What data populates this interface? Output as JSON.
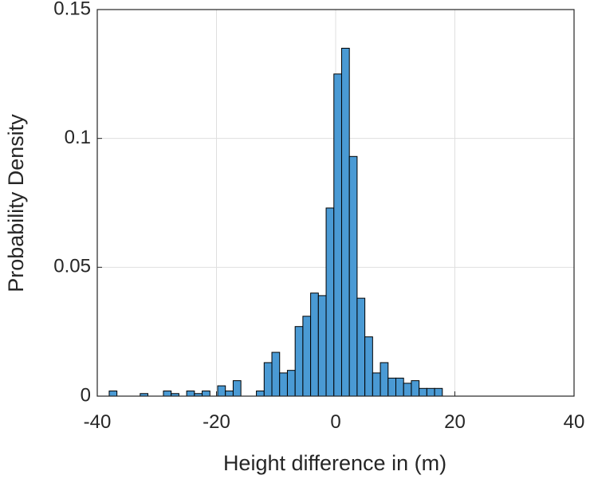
{
  "chart_data": {
    "type": "histogram",
    "xlabel": "Height difference in (m)",
    "ylabel": "Probability Density",
    "bins": [
      -38,
      -36.7,
      -35.4,
      -34.1,
      -32.8,
      -31.5,
      -30.2,
      -28.9,
      -27.6,
      -26.3,
      -25,
      -23.7,
      -22.4,
      -21.1,
      -19.8,
      -18.5,
      -17.2,
      -15.9,
      -14.6,
      -13.3,
      -12,
      -10.7,
      -9.4,
      -8.1,
      -6.8,
      -5.5,
      -4.2,
      -2.9,
      -1.6,
      -0.3,
      1,
      2.3,
      3.6,
      4.9,
      6.2,
      7.5,
      8.8,
      10.1,
      11.4,
      12.7,
      14,
      15.3,
      16.6,
      17.9
    ],
    "values": [
      0.002,
      0,
      0,
      0,
      0.001,
      0,
      0,
      0.002,
      0.001,
      0,
      0.002,
      0.001,
      0.002,
      0,
      0.004,
      0.002,
      0.006,
      0,
      0,
      0.002,
      0.013,
      0.017,
      0.009,
      0.01,
      0.027,
      0.031,
      0.04,
      0.039,
      0.073,
      0.125,
      0.135,
      0.093,
      0.038,
      0.023,
      0.009,
      0.013,
      0.007,
      0.007,
      0.005,
      0.006,
      0.003,
      0.003,
      0.003
    ],
    "color": "#4a9ad4",
    "xlim": [
      -40,
      40
    ],
    "xticks": [
      -40,
      -20,
      0,
      20,
      40
    ],
    "ylim": [
      0,
      0.15
    ],
    "yticks": [
      0,
      0.05,
      0.1,
      0.15
    ],
    "grid": true
  }
}
